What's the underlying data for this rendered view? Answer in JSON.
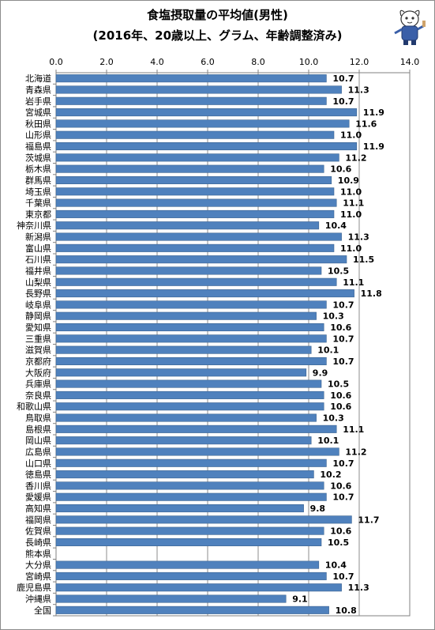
{
  "chart_data": {
    "type": "bar",
    "orientation": "horizontal",
    "title": "食塩摂取量の平均値(男性)",
    "subtitle": "(2016年、20歳以上、グラム、年齢調整済み)",
    "xlim": [
      0,
      14
    ],
    "ticks": [
      "0.0",
      "2.0",
      "4.0",
      "6.0",
      "8.0",
      "10.0",
      "12.0",
      "14.0"
    ],
    "grid": true,
    "bar_color": "#4F81BD",
    "categories": [
      "北海道",
      "青森県",
      "岩手県",
      "宮城県",
      "秋田県",
      "山形県",
      "福島県",
      "茨城県",
      "栃木県",
      "群馬県",
      "埼玉県",
      "千葉県",
      "東京都",
      "神奈川県",
      "新潟県",
      "富山県",
      "石川県",
      "福井県",
      "山梨県",
      "長野県",
      "岐阜県",
      "静岡県",
      "愛知県",
      "三重県",
      "滋賀県",
      "京都府",
      "大阪府",
      "兵庫県",
      "奈良県",
      "和歌山県",
      "鳥取県",
      "島根県",
      "岡山県",
      "広島県",
      "山口県",
      "徳島県",
      "香川県",
      "愛媛県",
      "高知県",
      "福岡県",
      "佐賀県",
      "長崎県",
      "熊本県",
      "大分県",
      "宮崎県",
      "鹿児島県",
      "沖縄県",
      "全国"
    ],
    "values": [
      10.7,
      11.3,
      10.7,
      11.9,
      11.6,
      11.0,
      11.9,
      11.2,
      10.6,
      10.9,
      11.0,
      11.1,
      11.0,
      10.4,
      11.3,
      11.0,
      11.5,
      10.5,
      11.1,
      11.8,
      10.7,
      10.3,
      10.6,
      10.7,
      10.1,
      10.7,
      9.9,
      10.5,
      10.6,
      10.6,
      10.3,
      11.1,
      10.1,
      11.2,
      10.7,
      10.2,
      10.6,
      10.7,
      9.8,
      11.7,
      10.6,
      10.5,
      null,
      10.4,
      10.7,
      11.3,
      9.1,
      10.8
    ],
    "value_labels": [
      "10.7",
      "11.3",
      "10.7",
      "11.9",
      "11.6",
      "11.0",
      "11.9",
      "11.2",
      "10.6",
      "10.9",
      "11.0",
      "11.1",
      "11.0",
      "10.4",
      "11.3",
      "11.0",
      "11.5",
      "10.5",
      "11.1",
      "11.8",
      "10.7",
      "10.3",
      "10.6",
      "10.7",
      "10.1",
      "10.7",
      "9.9",
      "10.5",
      "10.6",
      "10.6",
      "10.3",
      "11.1",
      "10.1",
      "11.2",
      "10.7",
      "10.2",
      "10.6",
      "10.7",
      "9.8",
      "11.7",
      "10.6",
      "10.5",
      "",
      "10.4",
      "10.7",
      "11.3",
      "9.1",
      "10.8"
    ]
  },
  "mascot": {
    "icon": "mascot-character-icon"
  }
}
